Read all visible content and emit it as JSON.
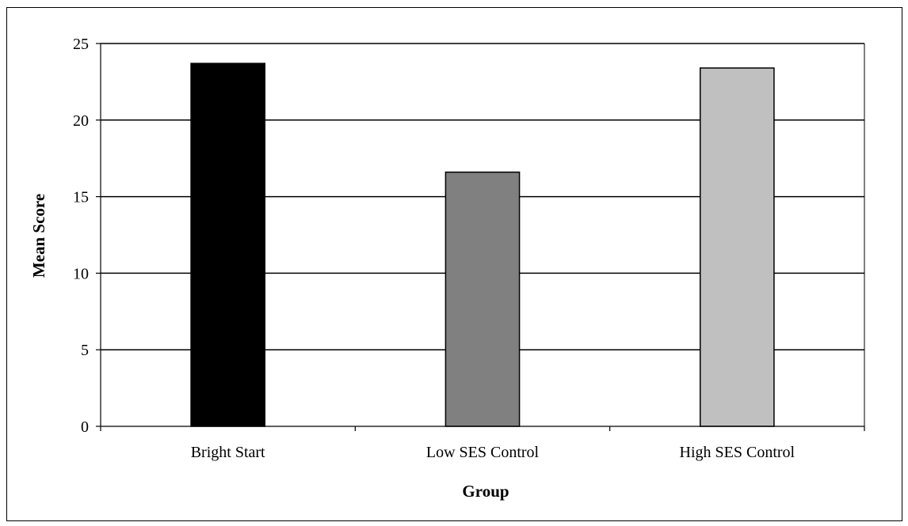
{
  "chart_data": {
    "type": "bar",
    "categories": [
      "Bright Start",
      "Low SES Control",
      "High SES Control"
    ],
    "values": [
      23.7,
      16.6,
      23.4
    ],
    "bar_colors": [
      "#000000",
      "#808080",
      "#c0c0c0"
    ],
    "xlabel": "Group",
    "ylabel": "Mean Score",
    "ylim": [
      0,
      25
    ],
    "yticks": [
      0,
      5,
      10,
      15,
      20,
      25
    ],
    "grid": true,
    "legend": false
  }
}
